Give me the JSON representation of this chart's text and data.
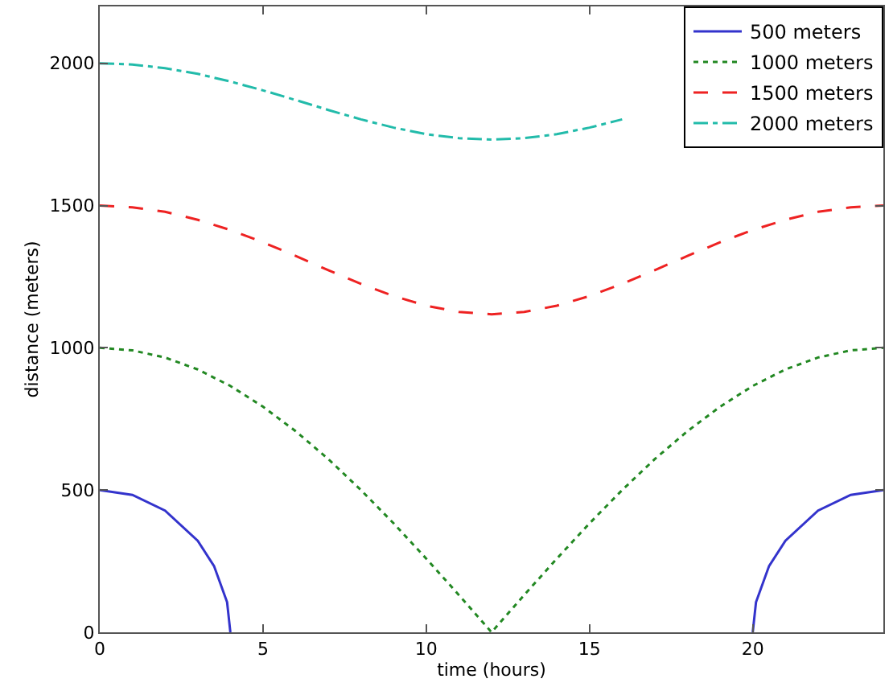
{
  "chart_data": {
    "type": "line",
    "xlabel": "time (hours)",
    "ylabel": "distance (meters)",
    "xlim": [
      0,
      24
    ],
    "ylim": [
      0,
      2200
    ],
    "xticks": [
      0,
      5,
      10,
      15,
      20
    ],
    "yticks": [
      0,
      500,
      1000,
      1500,
      2000
    ],
    "legend": "top right",
    "marker": "none",
    "series": [
      {
        "name": "500 meters",
        "color": "#3333cc",
        "line_style": "solid",
        "x": [
          0,
          1,
          2,
          3,
          3.5,
          3.9,
          4,
          12,
          20,
          20.1,
          20.5,
          21,
          22,
          23,
          24
        ],
        "values": [
          500,
          483,
          428,
          322,
          233,
          106,
          0,
          null,
          0,
          106,
          233,
          322,
          428,
          483,
          500
        ]
      },
      {
        "name": "1000 meters",
        "color": "#228822",
        "line_style": "dotted",
        "x": [
          0,
          1,
          2,
          3,
          4,
          5,
          6,
          7,
          8,
          9,
          10,
          11,
          12,
          13,
          14,
          15,
          16,
          17,
          18,
          19,
          20,
          21,
          22,
          23,
          24
        ],
        "values": [
          1000,
          991,
          966,
          924,
          866,
          793,
          707,
          609,
          500,
          383,
          259,
          131,
          0,
          131,
          259,
          383,
          500,
          609,
          707,
          793,
          866,
          924,
          966,
          991,
          1000
        ]
      },
      {
        "name": "1500 meters",
        "color": "#ee2222",
        "line_style": "dashed",
        "x": [
          0,
          1,
          2,
          3,
          4,
          5,
          6,
          7,
          8,
          9,
          10,
          11,
          12,
          13,
          14,
          15,
          16,
          17,
          18,
          19,
          20,
          21,
          22,
          23,
          24
        ],
        "values": [
          1500,
          1494,
          1478,
          1450,
          1414,
          1371,
          1323,
          1273,
          1225,
          1182,
          1148,
          1126,
          1118,
          1126,
          1148,
          1182,
          1225,
          1273,
          1323,
          1371,
          1414,
          1450,
          1478,
          1494,
          1500
        ]
      },
      {
        "name": "2000 meters",
        "color": "#22bbaa",
        "line_style": "dashdot",
        "x": [
          0,
          1,
          2,
          3,
          4,
          5,
          6,
          7,
          8,
          9,
          10,
          11,
          12,
          13,
          14,
          15,
          16
        ],
        "values": [
          2000,
          1996,
          1983,
          1963,
          1936,
          1905,
          1871,
          1836,
          1803,
          1774,
          1751,
          1737,
          1732,
          1737,
          1751,
          1774,
          1803
        ]
      }
    ]
  }
}
